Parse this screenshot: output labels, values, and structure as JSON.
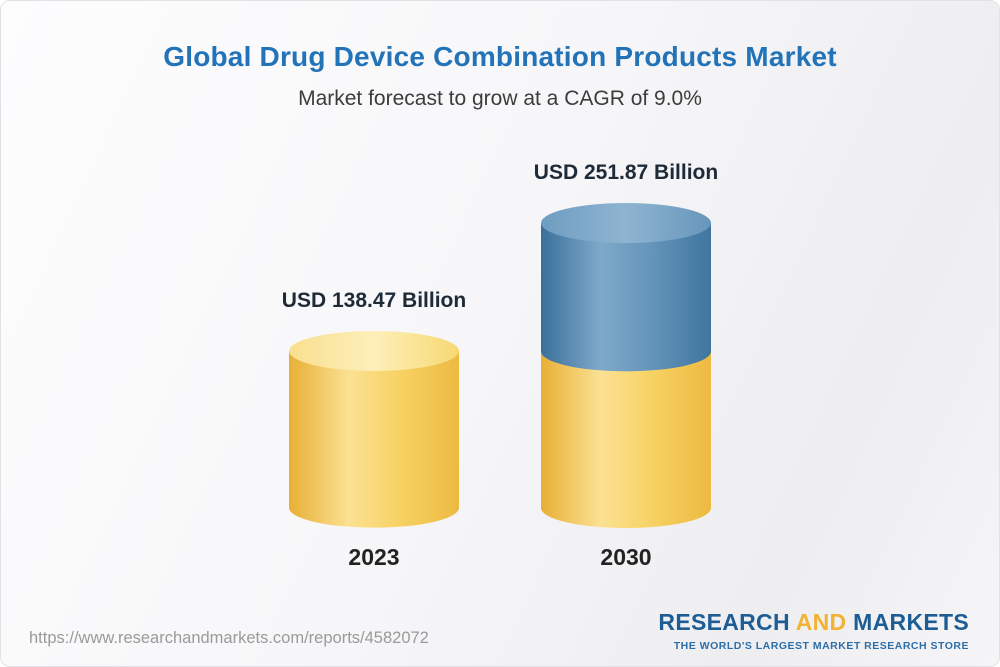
{
  "header": {
    "title": "Global Drug Device Combination Products Market",
    "subtitle": "Market forecast to grow at a CAGR of 9.0%"
  },
  "chart_data": {
    "type": "bar",
    "variant": "3d-cylinder",
    "title": "Global Drug Device Combination Products Market",
    "subtitle": "Market forecast to grow at a CAGR of 9.0%",
    "categories": [
      "2023",
      "2030"
    ],
    "values": [
      138.47,
      251.87
    ],
    "labels": [
      "USD 138.47 Billion",
      "USD 251.87 Billion"
    ],
    "unit": "USD Billion",
    "cagr": "9.0%",
    "ylim": [
      0,
      260
    ],
    "grid": false,
    "legend": "none",
    "notes": "2030 cylinder shows the 2023 base value in yellow with the growth segment stacked in blue on top",
    "colors": {
      "base": "#F5C95D",
      "growth": "#4A80A8",
      "title_accent": "#2273B8",
      "gradients": {
        "gYB": [
          [
            0,
            "#E8AF35"
          ],
          [
            0.35,
            "#FBE193"
          ],
          [
            0.65,
            "#F7D264"
          ],
          [
            1,
            "#EDBA41"
          ]
        ],
        "gYT": [
          [
            0,
            "#F9DF8F"
          ],
          [
            0.5,
            "#FDEFB9"
          ],
          [
            1,
            "#F7D872"
          ]
        ],
        "gBB": [
          [
            0,
            "#39709C"
          ],
          [
            0.35,
            "#7FA9C9"
          ],
          [
            0.65,
            "#6495BA"
          ],
          [
            1,
            "#3F759F"
          ]
        ],
        "gBT": [
          [
            0,
            "#6E9DC1"
          ],
          [
            0.5,
            "#8FB4D1"
          ],
          [
            1,
            "#6796BB"
          ]
        ]
      }
    }
  },
  "footer": {
    "url": "https://www.researchandmarkets.com/reports/4582072",
    "logo": {
      "part1": "RESEARCH",
      "part2": "AND",
      "part3": "MARKETS",
      "tagline": "THE WORLD'S LARGEST MARKET RESEARCH STORE"
    }
  }
}
